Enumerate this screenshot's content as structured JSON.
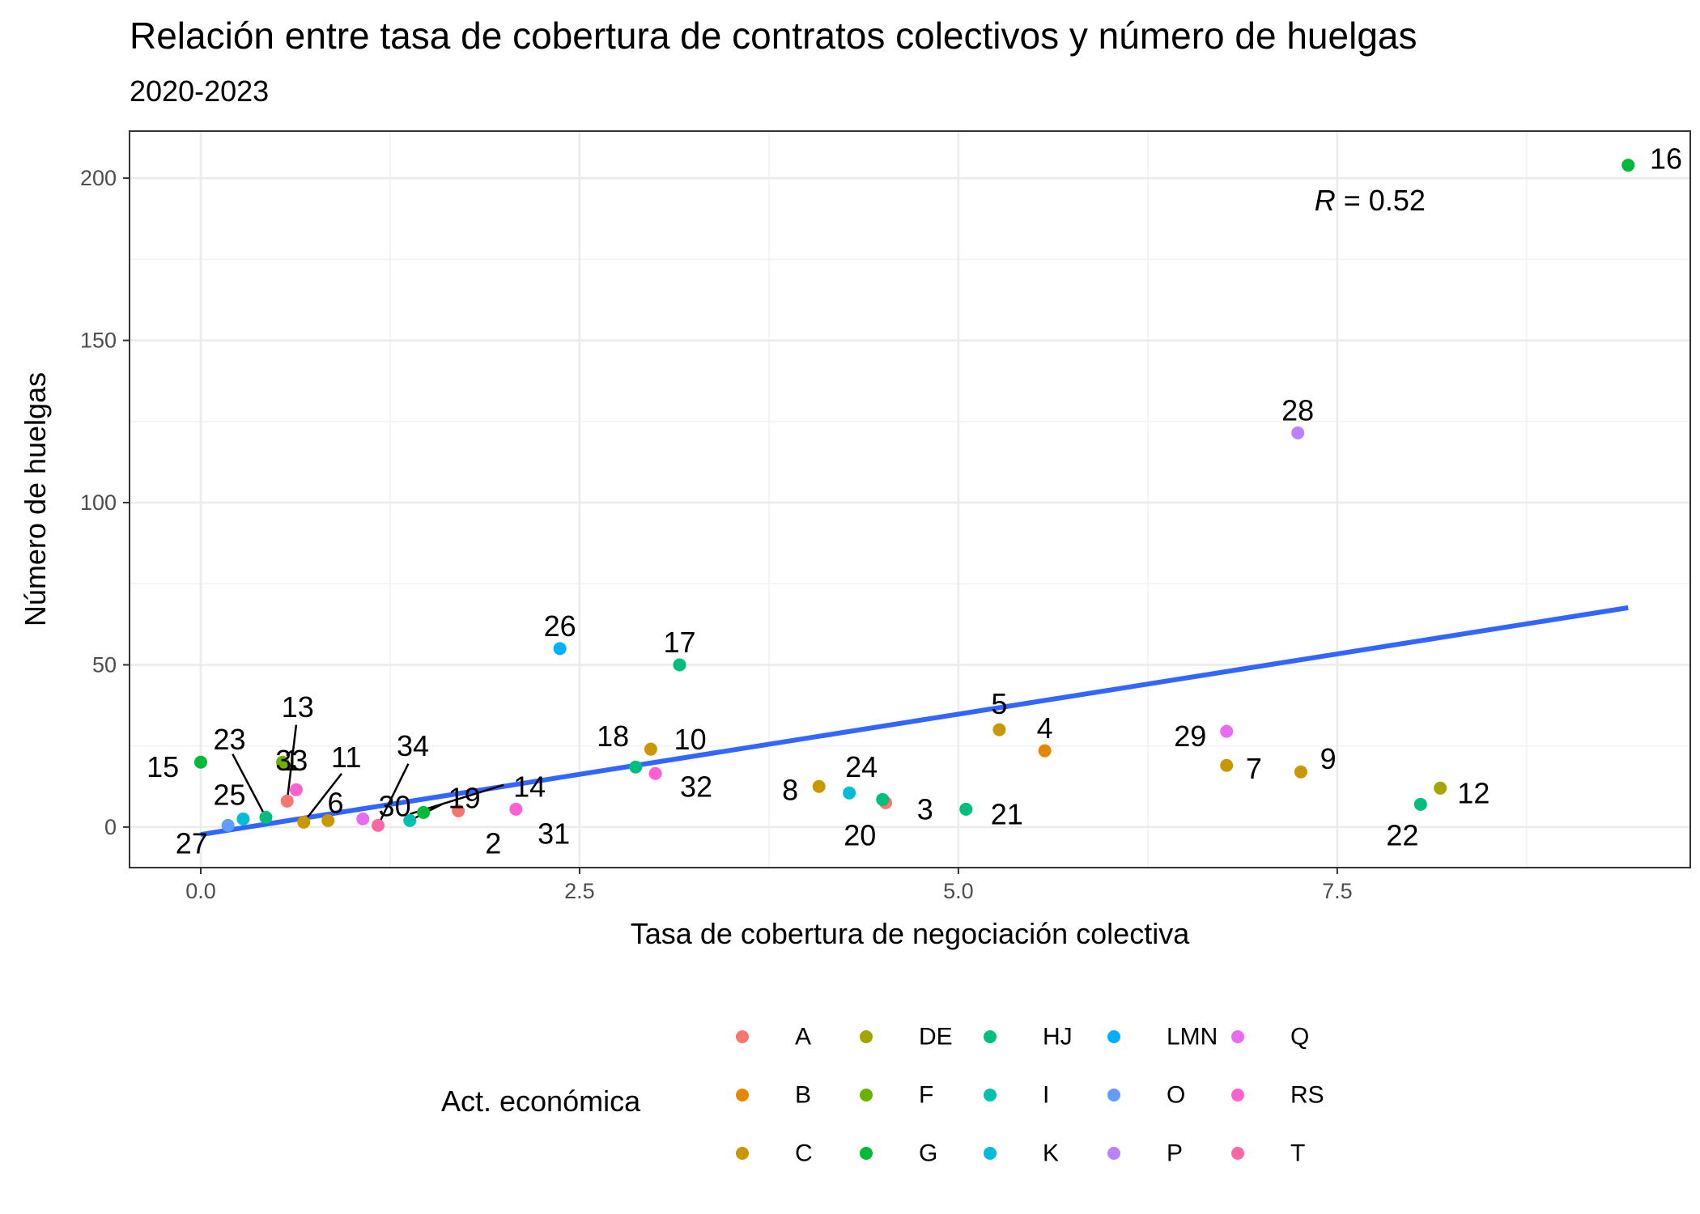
{
  "chart_data": {
    "type": "scatter",
    "title": "Relación entre tasa de cobertura de contratos colectivos y número de huelgas",
    "subtitle": "2020-2023",
    "xlabel": "Tasa de cobertura de negociación colectiva",
    "ylabel": "Número de huelgas",
    "xlim": [
      -0.47,
      9.83
    ],
    "ylim": [
      -12.5,
      214.5
    ],
    "x_ticks": [
      0,
      2.5,
      5,
      7.5
    ],
    "x_tick_labels": [
      "0.0",
      "2.5",
      "5.0",
      "7.5"
    ],
    "y_ticks": [
      0,
      50,
      100,
      150,
      200
    ],
    "y_tick_labels": [
      "0",
      "50",
      "100",
      "150",
      "200"
    ],
    "grid": true,
    "annotation": {
      "italic": "R",
      "rest": " = 0.52",
      "x": 7.35,
      "y": 190
    },
    "regression": {
      "x": [
        0,
        9.42
      ],
      "y": [
        -2.3,
        67.6
      ],
      "color": "#3366FF"
    },
    "legend": {
      "title": "Act. económica",
      "position": "bottom",
      "entries": [
        {
          "label": "A",
          "color": "#F8766D"
        },
        {
          "label": "B",
          "color": "#E58700"
        },
        {
          "label": "C",
          "color": "#C99800"
        },
        {
          "label": "DE",
          "color": "#A3A500"
        },
        {
          "label": "F",
          "color": "#6BB100"
        },
        {
          "label": "G",
          "color": "#00BA38"
        },
        {
          "label": "HJ",
          "color": "#00BF7D"
        },
        {
          "label": "I",
          "color": "#00C0AF"
        },
        {
          "label": "K",
          "color": "#00BCD8"
        },
        {
          "label": "LMN",
          "color": "#00B0F6"
        },
        {
          "label": "O",
          "color": "#619CFF"
        },
        {
          "label": "P",
          "color": "#B983FF"
        },
        {
          "label": "Q",
          "color": "#E76BF3"
        },
        {
          "label": "RS",
          "color": "#FD61D1"
        },
        {
          "label": "T",
          "color": "#FF67A4"
        }
      ]
    },
    "points": [
      {
        "id": "1",
        "x": 0.57,
        "y": 8,
        "group": "A",
        "color": "#F8766D"
      },
      {
        "id": "2",
        "x": 1.7,
        "y": 5,
        "group": "A",
        "color": "#F8766D"
      },
      {
        "id": "3",
        "x": 4.52,
        "y": 7.5,
        "group": "A",
        "color": "#F8766D"
      },
      {
        "id": "4",
        "x": 5.57,
        "y": 23.5,
        "group": "B",
        "color": "#E58700"
      },
      {
        "id": "5",
        "x": 5.27,
        "y": 30,
        "group": "C",
        "color": "#C99800"
      },
      {
        "id": "6",
        "x": 0.84,
        "y": 2,
        "group": "C",
        "color": "#C99800"
      },
      {
        "id": "7",
        "x": 6.77,
        "y": 19,
        "group": "C",
        "color": "#C99800"
      },
      {
        "id": "8",
        "x": 4.08,
        "y": 12.5,
        "group": "C",
        "color": "#C99800"
      },
      {
        "id": "9",
        "x": 7.26,
        "y": 17,
        "group": "C",
        "color": "#C99800"
      },
      {
        "id": "10",
        "x": 2.97,
        "y": 24,
        "group": "C",
        "color": "#C99800"
      },
      {
        "id": "11",
        "x": 0.68,
        "y": 1.5,
        "group": "C",
        "color": "#C99800"
      },
      {
        "id": "12",
        "x": 8.18,
        "y": 12,
        "group": "DE",
        "color": "#A3A500"
      },
      {
        "id": "13",
        "x": 0.54,
        "y": 20,
        "group": "F",
        "color": "#6BB100"
      },
      {
        "id": "14",
        "x": 1.47,
        "y": 4.5,
        "group": "G",
        "color": "#00BA38"
      },
      {
        "id": "15",
        "x": 0.0,
        "y": 20,
        "group": "G",
        "color": "#00BA38"
      },
      {
        "id": "16",
        "x": 9.42,
        "y": 204,
        "group": "G",
        "color": "#00BA38"
      },
      {
        "id": "17",
        "x": 3.16,
        "y": 50,
        "group": "HJ",
        "color": "#00BF7D"
      },
      {
        "id": "18",
        "x": 2.87,
        "y": 18.5,
        "group": "HJ",
        "color": "#00BF7D"
      },
      {
        "id": "19",
        "x": 1.38,
        "y": 2,
        "group": "I",
        "color": "#00C0AF"
      },
      {
        "id": "20",
        "x": 4.5,
        "y": 8.5,
        "group": "HJ",
        "color": "#00BF7D"
      },
      {
        "id": "21",
        "x": 5.05,
        "y": 5.5,
        "group": "HJ",
        "color": "#00BF7D"
      },
      {
        "id": "22",
        "x": 8.05,
        "y": 7,
        "group": "HJ",
        "color": "#00BF7D"
      },
      {
        "id": "23",
        "x": 0.43,
        "y": 3,
        "group": "HJ",
        "color": "#00BF7D"
      },
      {
        "id": "24",
        "x": 4.28,
        "y": 10.5,
        "group": "K",
        "color": "#00BCD8"
      },
      {
        "id": "25",
        "x": 0.28,
        "y": 2.5,
        "group": "K",
        "color": "#00BCD8"
      },
      {
        "id": "26",
        "x": 2.37,
        "y": 55,
        "group": "LMN",
        "color": "#00B0F6"
      },
      {
        "id": "27",
        "x": 0.18,
        "y": 0.5,
        "group": "O",
        "color": "#619CFF"
      },
      {
        "id": "28",
        "x": 7.24,
        "y": 121.5,
        "group": "P",
        "color": "#B983FF"
      },
      {
        "id": "29",
        "x": 6.77,
        "y": 29.5,
        "group": "Q",
        "color": "#E76BF3"
      },
      {
        "id": "30",
        "x": 1.07,
        "y": 2.5,
        "group": "Q",
        "color": "#E76BF3"
      },
      {
        "id": "31",
        "x": 2.08,
        "y": 5.5,
        "group": "RS",
        "color": "#FD61D1"
      },
      {
        "id": "32",
        "x": 3.0,
        "y": 16.5,
        "group": "RS",
        "color": "#FD61D1"
      },
      {
        "id": "33",
        "x": 0.63,
        "y": 11.5,
        "group": "RS",
        "color": "#FD61D1"
      },
      {
        "id": "34",
        "x": 1.17,
        "y": 0.5,
        "group": "T",
        "color": "#FF67A4"
      }
    ],
    "point_labels": [
      {
        "text": "1",
        "x": 0.6,
        "y": 20.5
      },
      {
        "text": "2",
        "x": 1.93,
        "y": -5
      },
      {
        "text": "3",
        "x": 4.78,
        "y": 5.5
      },
      {
        "text": "4",
        "x": 5.57,
        "y": 30.5
      },
      {
        "text": "5",
        "x": 5.27,
        "y": 38
      },
      {
        "text": "6",
        "x": 0.89,
        "y": 7.5
      },
      {
        "text": "7",
        "x": 6.95,
        "y": 18
      },
      {
        "text": "8",
        "x": 3.89,
        "y": 11.5
      },
      {
        "text": "9",
        "x": 7.44,
        "y": 21
      },
      {
        "text": "10",
        "x": 3.23,
        "y": 27
      },
      {
        "text": "11",
        "x": 0.96,
        "y": 21.5
      },
      {
        "text": "12",
        "x": 8.4,
        "y": 10.5
      },
      {
        "text": "13",
        "x": 0.64,
        "y": 37
      },
      {
        "text": "14",
        "x": 2.17,
        "y": 12.5
      },
      {
        "text": "15",
        "x": -0.25,
        "y": 18.5
      },
      {
        "text": "16",
        "x": 9.67,
        "y": 206
      },
      {
        "text": "17",
        "x": 3.16,
        "y": 57
      },
      {
        "text": "18",
        "x": 2.72,
        "y": 28
      },
      {
        "text": "19",
        "x": 1.74,
        "y": 9
      },
      {
        "text": "20",
        "x": 4.35,
        "y": -2.5
      },
      {
        "text": "21",
        "x": 5.32,
        "y": 4
      },
      {
        "text": "22",
        "x": 7.93,
        "y": -2.5
      },
      {
        "text": "23",
        "x": 0.19,
        "y": 27
      },
      {
        "text": "24",
        "x": 4.36,
        "y": 18.5
      },
      {
        "text": "25",
        "x": 0.19,
        "y": 10
      },
      {
        "text": "26",
        "x": 2.37,
        "y": 62
      },
      {
        "text": "27",
        "x": -0.06,
        "y": -5
      },
      {
        "text": "28",
        "x": 7.24,
        "y": 128.5
      },
      {
        "text": "29",
        "x": 6.53,
        "y": 28
      },
      {
        "text": "30",
        "x": 1.28,
        "y": 6.5
      },
      {
        "text": "31",
        "x": 2.33,
        "y": -2
      },
      {
        "text": "32",
        "x": 3.27,
        "y": 12.5
      },
      {
        "text": "33",
        "x": 0.6,
        "y": 20.5
      },
      {
        "text": "34",
        "x": 1.4,
        "y": 25
      }
    ],
    "leader_lines": [
      {
        "from": [
          0.21,
          22.5
        ],
        "to": [
          0.43,
          3
        ]
      },
      {
        "from": [
          0.63,
          31.5
        ],
        "to": [
          0.57,
          8
        ]
      },
      {
        "from": [
          0.93,
          16.5
        ],
        "to": [
          0.68,
          1.5
        ]
      },
      {
        "from": [
          1.37,
          19.5
        ],
        "to": [
          1.17,
          0.5
        ]
      },
      {
        "from": [
          1.59,
          7
        ],
        "to": [
          1.38,
          2
        ]
      },
      {
        "from": [
          2.0,
          13
        ],
        "to": [
          1.38,
          4
        ]
      }
    ]
  }
}
